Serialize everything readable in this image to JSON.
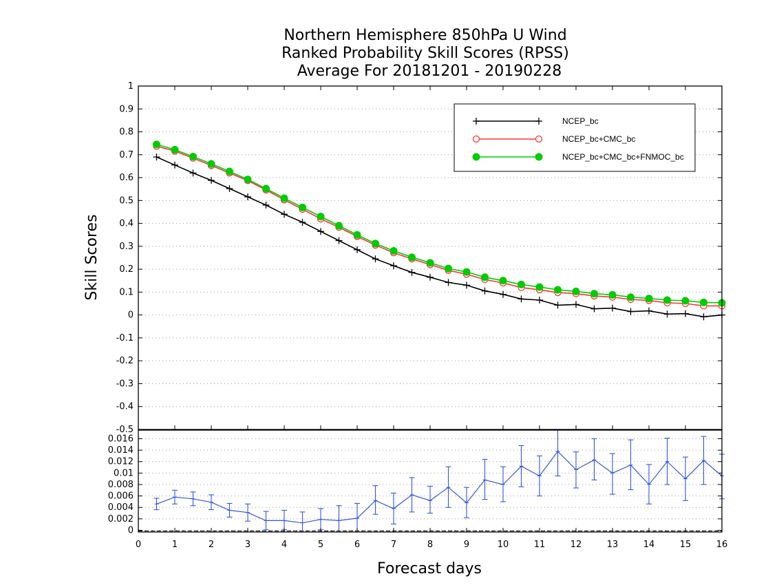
{
  "chart_data": {
    "type": "line",
    "title": [
      "Northern Hemisphere 850hPa U Wind",
      "Ranked Probability Skill Scores (RPSS)",
      "Average For 20181201 - 20190228"
    ],
    "xlabel": "Forecast days",
    "ylabel": "Skill Scores",
    "xlim": [
      0,
      16
    ],
    "x_ticks": [
      "0",
      "1",
      "2",
      "3",
      "4",
      "5",
      "6",
      "7",
      "8",
      "9",
      "10",
      "11",
      "12",
      "13",
      "14",
      "15",
      "16"
    ],
    "ylim": [
      -0.5,
      1
    ],
    "y_ticks": [
      "1",
      "0.9",
      "0.8",
      "0.7",
      "0.6",
      "0.5",
      "0.4",
      "0.3",
      "0.2",
      "0.1",
      "0",
      "-0.1",
      "-0.2",
      "-0.3",
      "-0.4",
      "-0.5"
    ],
    "grid": true,
    "legend_position": "top-right",
    "x": [
      0.5,
      1,
      1.5,
      2,
      2.5,
      3,
      3.5,
      4,
      4.5,
      5,
      5.5,
      6,
      6.5,
      7,
      7.5,
      8,
      8.5,
      9,
      9.5,
      10,
      10.5,
      11,
      11.5,
      12,
      12.5,
      13,
      13.5,
      14,
      14.5,
      15,
      15.5,
      16
    ],
    "series": [
      {
        "name": "NCEP_bc",
        "color": "#000000",
        "marker": "plus",
        "values": [
          0.69,
          0.655,
          0.62,
          0.588,
          0.552,
          0.516,
          0.48,
          0.44,
          0.405,
          0.365,
          0.325,
          0.285,
          0.245,
          0.215,
          0.186,
          0.165,
          0.142,
          0.13,
          0.105,
          0.09,
          0.07,
          0.065,
          0.043,
          0.046,
          0.027,
          0.03,
          0.015,
          0.018,
          0.004,
          0.006,
          -0.008,
          0.0
        ]
      },
      {
        "name": "NCEP_bc+CMC_bc",
        "color": "#ff3333",
        "marker": "open-circle",
        "values": [
          0.737,
          0.716,
          0.685,
          0.653,
          0.62,
          0.587,
          0.546,
          0.503,
          0.462,
          0.42,
          0.383,
          0.343,
          0.305,
          0.272,
          0.245,
          0.22,
          0.195,
          0.178,
          0.155,
          0.14,
          0.12,
          0.11,
          0.098,
          0.093,
          0.083,
          0.078,
          0.068,
          0.063,
          0.053,
          0.05,
          0.04,
          0.04
        ]
      },
      {
        "name": "NCEP_bc+CMC_bc+FNMOC_bc",
        "color": "#00cc00",
        "marker": "filled-circle",
        "values": [
          0.745,
          0.722,
          0.692,
          0.66,
          0.627,
          0.592,
          0.552,
          0.51,
          0.47,
          0.43,
          0.39,
          0.35,
          0.312,
          0.28,
          0.252,
          0.228,
          0.203,
          0.188,
          0.165,
          0.15,
          0.133,
          0.122,
          0.11,
          0.103,
          0.093,
          0.088,
          0.078,
          0.072,
          0.065,
          0.062,
          0.055,
          0.053
        ]
      }
    ],
    "difference_panel": {
      "color": "#3355dd",
      "ylim": [
        -0.0003,
        0.0175
      ],
      "y_ticks": [
        "0.016",
        "0.014",
        "0.012",
        "0.01",
        "0.008",
        "0.006",
        "0.004",
        "0.002",
        "0"
      ],
      "values": [
        0.0046,
        0.0058,
        0.0055,
        0.0049,
        0.0035,
        0.0031,
        0.0017,
        0.0017,
        0.0013,
        0.0019,
        0.0017,
        0.0021,
        0.0052,
        0.0038,
        0.0062,
        0.0052,
        0.0075,
        0.0048,
        0.0088,
        0.008,
        0.0112,
        0.0095,
        0.0138,
        0.0106,
        0.0123,
        0.01,
        0.0114,
        0.008,
        0.012,
        0.009,
        0.0122,
        0.0095
      ],
      "err_low": [
        0.0036,
        0.0046,
        0.0043,
        0.0036,
        0.0023,
        0.0016,
        0.0001,
        0.0001,
        -0.0003,
        0.0001,
        -0.0003,
        -0.0005,
        0.0028,
        0.0011,
        0.0032,
        0.003,
        0.004,
        0.0022,
        0.0054,
        0.005,
        0.0076,
        0.006,
        0.0095,
        0.0074,
        0.0088,
        0.0063,
        0.0071,
        0.0046,
        0.008,
        0.0052,
        0.008,
        0.0055
      ],
      "err_high": [
        0.0056,
        0.007,
        0.0067,
        0.0062,
        0.0047,
        0.0046,
        0.0033,
        0.0035,
        0.0032,
        0.0038,
        0.0043,
        0.0047,
        0.0078,
        0.0065,
        0.0092,
        0.0077,
        0.0111,
        0.0075,
        0.0124,
        0.0111,
        0.0148,
        0.013,
        0.0175,
        0.0137,
        0.016,
        0.0134,
        0.0158,
        0.0115,
        0.0161,
        0.0128,
        0.0164,
        0.0133
      ]
    }
  }
}
